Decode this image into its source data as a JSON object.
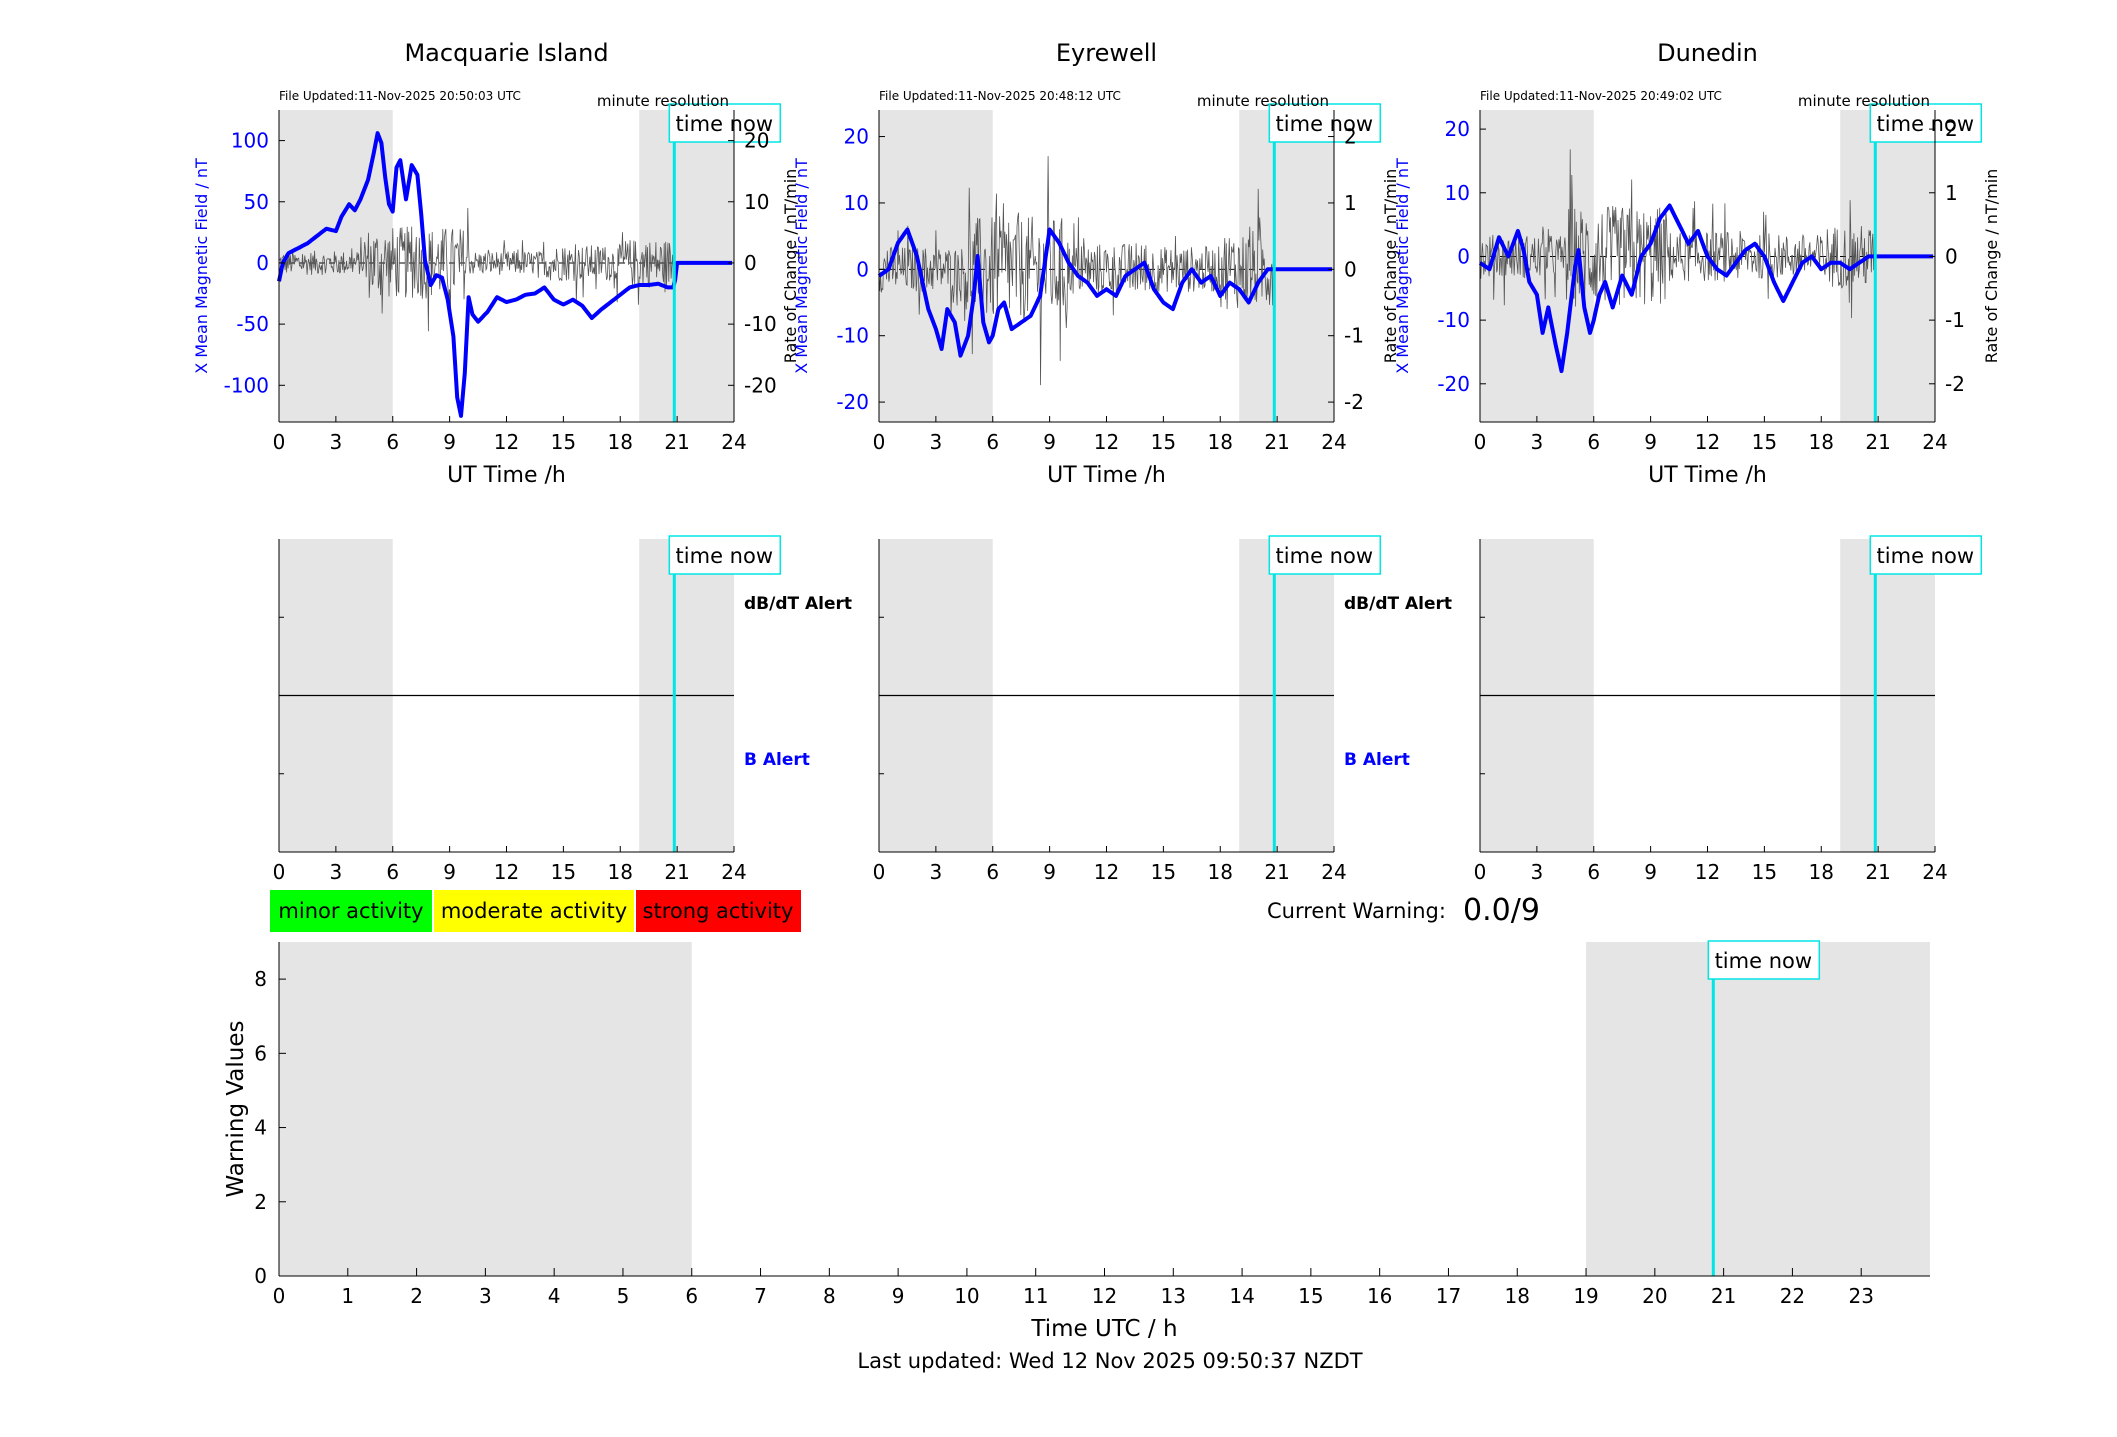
{
  "colors": {
    "field": "#0000ff",
    "rate": "#555555",
    "shade": "#e5e5e5",
    "time_now": "#00e5e5",
    "minor": "#00ff00",
    "moderate": "#ffff00",
    "strong": "#ff0000"
  },
  "common": {
    "time_now_label": "time now",
    "resolution_label": "minute resolution",
    "x_axis_label": "UT Time /h",
    "x_ticks": [
      0,
      3,
      6,
      9,
      12,
      15,
      18,
      21,
      24
    ],
    "y_left_label": "X Mean Magnetic Field / nT",
    "y_right_label": "Rate of Change / nT/min",
    "dbdt_alert_label": "dB/dT Alert",
    "b_alert_label": "B Alert",
    "time_now_hour": 20.85,
    "shade_ranges": [
      [
        0,
        6
      ],
      [
        19,
        24
      ]
    ]
  },
  "legend": {
    "minor": "minor activity",
    "moderate": "moderate activity",
    "strong": "strong activity"
  },
  "warning": {
    "label": "Current Warning:",
    "value": "0.0/9"
  },
  "footer": {
    "last_updated": "Last updated: Wed 12 Nov 2025 09:50:37 NZDT"
  },
  "chart_data": [
    {
      "type": "line",
      "title": "Macquarie Island",
      "file_updated": "File Updated:11-Nov-2025 20:50:03 UTC",
      "xlabel": "UT Time /h",
      "ylabel": "X Mean Magnetic Field / nT",
      "ylabel_right": "Rate of Change / nT/min",
      "xlim": [
        0,
        24
      ],
      "ylim": [
        -130,
        125
      ],
      "ylim_right": [
        -26,
        25
      ],
      "yticks": [
        -100,
        -50,
        0,
        50,
        100
      ],
      "yticks_right": [
        -20,
        -10,
        0,
        10,
        20
      ],
      "rate_noise": [
        2,
        6,
        2,
        3,
        4
      ],
      "series": [
        {
          "x": [
            0,
            0.2,
            0.5,
            1,
            1.5,
            2,
            2.5,
            3,
            3.3,
            3.7,
            4,
            4.3,
            4.7,
            5,
            5.2,
            5.4,
            5.6,
            5.8,
            6,
            6.2,
            6.4,
            6.7,
            7,
            7.3,
            7.5,
            7.7,
            8,
            8.3,
            8.6,
            8.9,
            9.2,
            9.4,
            9.6,
            9.8,
            10,
            10.2,
            10.5,
            11,
            11.5,
            12,
            12.5,
            13,
            13.5,
            14,
            14.5,
            15,
            15.5,
            16,
            16.5,
            17,
            17.5,
            18,
            18.5,
            19,
            19.5,
            20,
            20.5,
            20.85,
            21,
            24
          ],
          "y": [
            -15,
            0,
            8,
            12,
            16,
            22,
            28,
            26,
            38,
            48,
            43,
            52,
            68,
            90,
            106,
            98,
            70,
            48,
            42,
            78,
            84,
            52,
            80,
            72,
            40,
            2,
            -18,
            -10,
            -12,
            -30,
            -60,
            -110,
            -125,
            -90,
            -28,
            -42,
            -48,
            -40,
            -28,
            -32,
            -30,
            -26,
            -25,
            -20,
            -30,
            -34,
            -30,
            -35,
            -45,
            -38,
            -32,
            -26,
            -20,
            -18,
            -18,
            -17,
            -20,
            -20,
            0,
            0
          ]
        }
      ]
    },
    {
      "type": "line",
      "title": "Eyrewell",
      "file_updated": "File Updated:11-Nov-2025 20:48:12 UTC",
      "xlabel": "UT Time /h",
      "ylabel": "X Mean Magnetic Field / nT",
      "ylabel_right": "Rate of Change / nT/min",
      "xlim": [
        0,
        24
      ],
      "ylim": [
        -23,
        24
      ],
      "ylim_right": [
        -2.3,
        2.4
      ],
      "yticks": [
        -20,
        -10,
        0,
        10,
        20
      ],
      "yticks_right": [
        -2,
        -1,
        0,
        1,
        2
      ],
      "rate_noise": [
        0.35,
        0.8,
        0.4,
        0.35,
        0.6
      ],
      "series": [
        {
          "x": [
            0,
            0.5,
            1,
            1.5,
            2,
            2.3,
            2.6,
            3,
            3.3,
            3.6,
            4,
            4.3,
            4.7,
            5,
            5.2,
            5.5,
            5.8,
            6,
            6.3,
            6.6,
            7,
            7.5,
            8,
            8.5,
            9,
            9.5,
            10,
            10.5,
            11,
            11.5,
            12,
            12.5,
            13,
            13.5,
            14,
            14.5,
            15,
            15.5,
            16,
            16.5,
            17,
            17.5,
            18,
            18.5,
            19,
            19.5,
            20,
            20.5,
            20.85,
            21,
            24
          ],
          "y": [
            -1,
            0,
            4,
            6,
            2,
            -2,
            -6,
            -9,
            -12,
            -6,
            -8,
            -13,
            -10,
            -4,
            2,
            -8,
            -11,
            -10,
            -6,
            -5,
            -9,
            -8,
            -7,
            -4,
            6,
            4,
            1,
            -1,
            -2,
            -4,
            -3,
            -4,
            -1,
            0,
            1,
            -3,
            -5,
            -6,
            -2,
            0,
            -2,
            -1,
            -4,
            -2,
            -3,
            -5,
            -2,
            0,
            0,
            0,
            0
          ]
        }
      ]
    },
    {
      "type": "line",
      "title": "Dunedin",
      "file_updated": "File Updated:11-Nov-2025 20:49:02 UTC",
      "xlabel": "UT Time /h",
      "ylabel": "X Mean Magnetic Field / nT",
      "ylabel_right": "Rate of Change / nT/min",
      "xlim": [
        0,
        24
      ],
      "ylim": [
        -26,
        23
      ],
      "ylim_right": [
        -2.6,
        2.3
      ],
      "yticks": [
        -20,
        -10,
        0,
        10,
        20
      ],
      "yticks_right": [
        -2,
        -1,
        0,
        1,
        2
      ],
      "rate_noise": [
        0.35,
        0.8,
        0.4,
        0.35,
        0.5
      ],
      "series": [
        {
          "x": [
            0,
            0.5,
            1,
            1.5,
            2,
            2.3,
            2.6,
            3,
            3.3,
            3.6,
            4,
            4.3,
            4.6,
            5,
            5.2,
            5.5,
            5.8,
            6,
            6.3,
            6.6,
            7,
            7.5,
            8,
            8.5,
            9,
            9.5,
            10,
            10.5,
            11,
            11.5,
            12,
            12.5,
            13,
            13.5,
            14,
            14.5,
            15,
            15.5,
            16,
            16.5,
            17,
            17.5,
            18,
            18.5,
            19,
            19.5,
            20,
            20.5,
            20.85,
            21,
            24
          ],
          "y": [
            -1,
            -2,
            3,
            0,
            4,
            1,
            -4,
            -6,
            -12,
            -8,
            -14,
            -18,
            -12,
            -2,
            1,
            -8,
            -12,
            -10,
            -6,
            -4,
            -8,
            -3,
            -6,
            0,
            2,
            6,
            8,
            5,
            2,
            4,
            0,
            -2,
            -3,
            -1,
            1,
            2,
            0,
            -4,
            -7,
            -4,
            -1,
            0,
            -2,
            -1,
            -1,
            -2,
            -1,
            0,
            0,
            0,
            0
          ]
        }
      ]
    },
    {
      "type": "line",
      "title": "",
      "xlabel": "Time UTC / h",
      "ylabel": "Warning Values",
      "xlim": [
        0,
        24
      ],
      "ylim": [
        0,
        9
      ],
      "xticks": [
        0,
        1,
        2,
        3,
        4,
        5,
        6,
        7,
        8,
        9,
        10,
        11,
        12,
        13,
        14,
        15,
        16,
        17,
        18,
        19,
        20,
        21,
        22,
        23
      ],
      "yticks": [
        0,
        2,
        4,
        6,
        8
      ],
      "shade_ranges": [
        [
          0,
          6
        ],
        [
          19,
          24
        ]
      ],
      "time_now_hour": 20.85
    }
  ]
}
